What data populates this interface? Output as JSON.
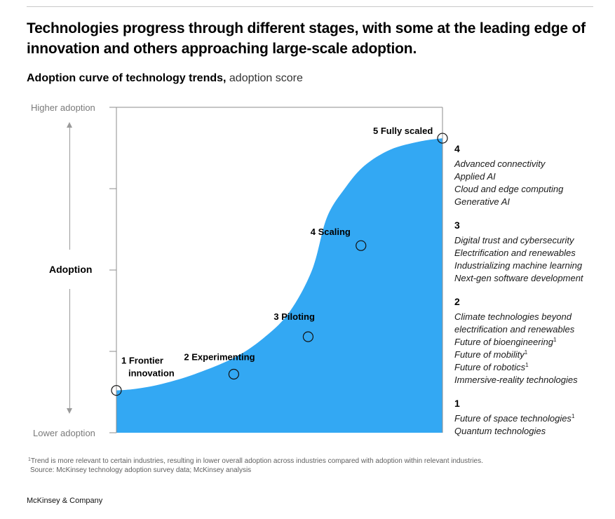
{
  "headline": "Technologies progress through different stages, with some at the leading edge of innovation and others approaching large-scale adoption.",
  "subtitle": {
    "bold": "Adoption curve of technology trends,",
    "light": "adoption score"
  },
  "colors": {
    "fill": "#33A8F3",
    "axis": "#8e8e8e",
    "text": "#000000"
  },
  "chart_data": {
    "type": "area",
    "title": "Adoption curve of technology trends, adoption score",
    "ylabel": "Adoption",
    "y_top_label": "Higher adoption",
    "y_bottom_label": "Lower adoption",
    "ylim": [
      0,
      1
    ],
    "xlim": [
      0,
      1
    ],
    "grid": false,
    "curve": [
      [
        0,
        0.13
      ],
      [
        0.06,
        0.135
      ],
      [
        0.14,
        0.15
      ],
      [
        0.24,
        0.18
      ],
      [
        0.36,
        0.23
      ],
      [
        0.45,
        0.29
      ],
      [
        0.53,
        0.37
      ],
      [
        0.6,
        0.5
      ],
      [
        0.645,
        0.66
      ],
      [
        0.7,
        0.75
      ],
      [
        0.76,
        0.82
      ],
      [
        0.84,
        0.87
      ],
      [
        0.93,
        0.895
      ],
      [
        1,
        0.905
      ]
    ],
    "stages": [
      {
        "score": "1",
        "lines": [
          "1 Frontier",
          "innovation"
        ],
        "x": 0,
        "y": 0.13
      },
      {
        "score": "2",
        "lines": [
          "2 Experimenting"
        ],
        "x": 0.36,
        "y": 0.18
      },
      {
        "score": "3",
        "lines": [
          "3 Piloting"
        ],
        "x": 0.588,
        "y": 0.295
      },
      {
        "score": "4",
        "lines": [
          "4 Scaling"
        ],
        "x": 0.75,
        "y": 0.575
      },
      {
        "score": "5",
        "lines": [
          "5 Fully scaled"
        ],
        "x": 1,
        "y": 0.905
      }
    ]
  },
  "tech_groups": [
    {
      "score": "4",
      "items": [
        {
          "text": "Advanced connectivity",
          "note": ""
        },
        {
          "text": "Applied AI",
          "note": ""
        },
        {
          "text": "Cloud and edge computing",
          "note": ""
        },
        {
          "text": "Generative AI",
          "note": ""
        }
      ]
    },
    {
      "score": "3",
      "items": [
        {
          "text": "Digital trust and cybersecurity",
          "note": ""
        },
        {
          "text": "Electrification and renewables",
          "note": ""
        },
        {
          "text": "Industrializing machine learning",
          "note": ""
        },
        {
          "text": "Next-gen software development",
          "note": ""
        }
      ]
    },
    {
      "score": "2",
      "items": [
        {
          "text": "Climate technologies beyond",
          "note": ""
        },
        {
          "text": "electrification and renewables",
          "note": ""
        },
        {
          "text": "Future of bioengineering",
          "note": "1"
        },
        {
          "text": "Future of mobility",
          "note": "1"
        },
        {
          "text": "Future of robotics",
          "note": "1"
        },
        {
          "text": "Immersive-reality technologies",
          "note": ""
        }
      ]
    },
    {
      "score": "1",
      "items": [
        {
          "text": "Future of space technologies",
          "note": "1"
        },
        {
          "text": "Quantum technologies",
          "note": ""
        }
      ]
    }
  ],
  "footnote": {
    "marker": "1",
    "text": "Trend is more relevant to certain industries, resulting in lower overall adoption across industries compared with adoption within relevant industries.",
    "source": "Source: McKinsey technology adoption survey data; McKinsey analysis"
  },
  "brand": "McKinsey & Company"
}
